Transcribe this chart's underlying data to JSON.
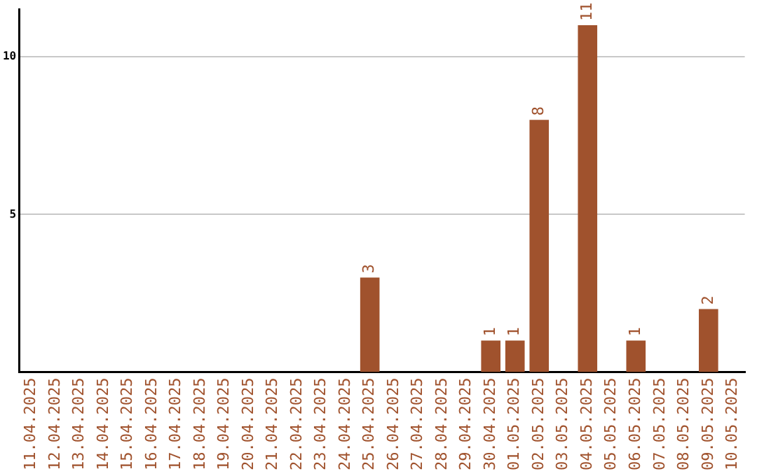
{
  "chart_data": {
    "type": "bar",
    "categories": [
      "11.04.2025",
      "12.04.2025",
      "13.04.2025",
      "14.04.2025",
      "15.04.2025",
      "16.04.2025",
      "17.04.2025",
      "18.04.2025",
      "19.04.2025",
      "20.04.2025",
      "21.04.2025",
      "22.04.2025",
      "23.04.2025",
      "24.04.2025",
      "25.04.2025",
      "26.04.2025",
      "27.04.2025",
      "28.04.2025",
      "29.04.2025",
      "30.04.2025",
      "01.05.2025",
      "02.05.2025",
      "03.05.2025",
      "04.05.2025",
      "05.05.2025",
      "06.05.2025",
      "07.05.2025",
      "08.05.2025",
      "09.05.2025",
      "10.05.2025"
    ],
    "values": [
      0,
      0,
      0,
      0,
      0,
      0,
      0,
      0,
      0,
      0,
      0,
      0,
      0,
      0,
      3,
      0,
      0,
      0,
      0,
      1,
      1,
      8,
      0,
      11,
      0,
      1,
      0,
      0,
      2,
      0
    ],
    "value_labels": [
      null,
      null,
      null,
      null,
      null,
      null,
      null,
      null,
      null,
      null,
      null,
      null,
      null,
      null,
      "3",
      null,
      null,
      null,
      null,
      "1",
      "1",
      "8",
      null,
      "11",
      null,
      "1",
      null,
      null,
      "2",
      null
    ],
    "color": "#a0522d",
    "ylim": [
      0,
      11.5
    ],
    "yticks": [
      5,
      10
    ],
    "grid": "y",
    "legend": false
  }
}
